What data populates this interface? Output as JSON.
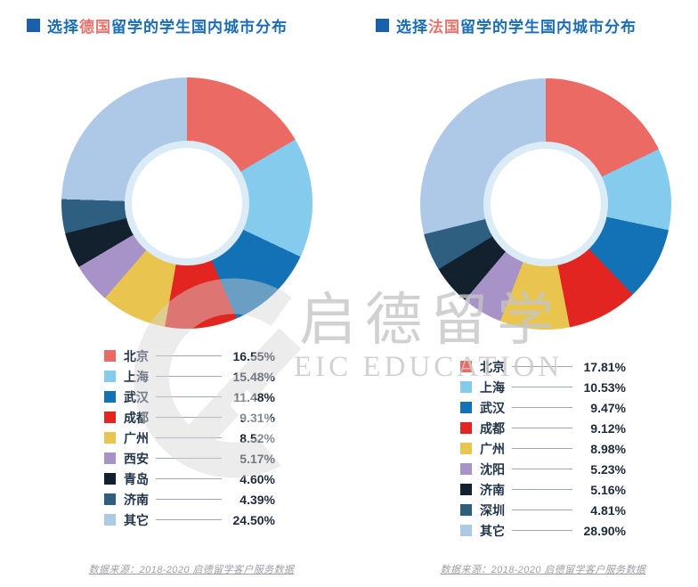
{
  "watermark": {
    "cn": "启德留学",
    "en": "EIC EDUCATION"
  },
  "chart_data": [
    {
      "type": "pie",
      "subtype": "donut",
      "title": "选择德国留学的学生国内城市分布",
      "title_parts": {
        "prefix": "选择",
        "highlight": "德国",
        "suffix": "留学的学生国内城市分布"
      },
      "categories": [
        "北京",
        "上海",
        "武汉",
        "成都",
        "广州",
        "西安",
        "青岛",
        "济南",
        "其它"
      ],
      "values": [
        16.55,
        15.48,
        11.48,
        9.31,
        8.52,
        5.17,
        4.6,
        4.39,
        24.5
      ],
      "value_labels": [
        "16.55%",
        "15.48%",
        "11.48%",
        "9.31%",
        "8.52%",
        "5.17%",
        "4.60%",
        "4.39%",
        "24.50%"
      ],
      "colors": [
        "#ec6a64",
        "#85cbee",
        "#1272b5",
        "#e32521",
        "#e9c44f",
        "#a793c8",
        "#13202e",
        "#2e5f80",
        "#aec9e7"
      ],
      "start_angle_deg": 0,
      "direction": "clockwise",
      "legend_position": "below",
      "source": "数据来源：2018-2020 启德留学客户服务数据"
    },
    {
      "type": "pie",
      "subtype": "donut",
      "title": "选择法国留学的学生国内城市分布",
      "title_parts": {
        "prefix": "选择",
        "highlight": "法国",
        "suffix": "留学的学生国内城市分布"
      },
      "categories": [
        "北京",
        "上海",
        "武汉",
        "成都",
        "广州",
        "沈阳",
        "济南",
        "深圳",
        "其它"
      ],
      "values": [
        17.81,
        10.53,
        9.47,
        9.12,
        8.98,
        5.23,
        5.16,
        4.81,
        28.9
      ],
      "value_labels": [
        "17.81%",
        "10.53%",
        "9.47%",
        "9.12%",
        "8.98%",
        "5.23%",
        "5.16%",
        "4.81%",
        "28.90%"
      ],
      "colors": [
        "#ec6a64",
        "#85cbee",
        "#1272b5",
        "#e32521",
        "#e9c44f",
        "#a793c8",
        "#13202e",
        "#2e5f80",
        "#aec9e7"
      ],
      "start_angle_deg": 0,
      "direction": "clockwise",
      "legend_position": "below",
      "source": "数据来源：2018-2020 启德留学客户服务数据"
    }
  ],
  "style": {
    "title_color": "#1a6db6",
    "title_highlight_color": "#e8736c",
    "bullet_color": "#1b60ab",
    "hole_ring_color": "#dbecf7",
    "leader_line_color": "#9aa7b5",
    "footer_color": "#9ba0a6",
    "watermark_color": "#c6c6c6"
  }
}
